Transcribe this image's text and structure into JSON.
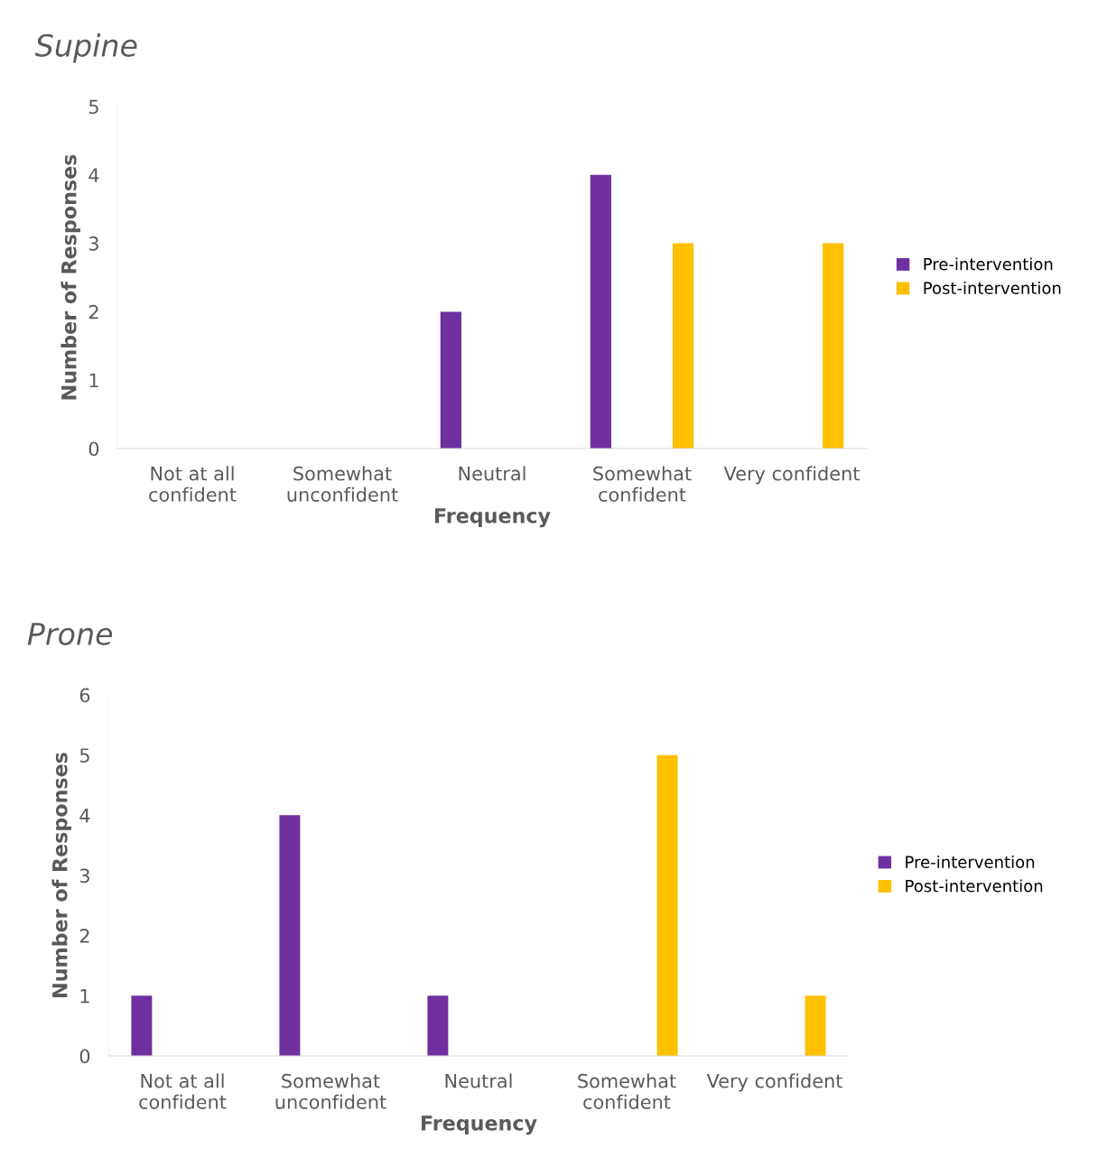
{
  "chart_data": [
    {
      "type": "bar",
      "title": "Supine",
      "xlabel": "Frequency",
      "ylabel": "Number of Responses",
      "categories": [
        "Not at all\nconfident",
        "Somewhat\nunconfident",
        "Neutral",
        "Somewhat\nconfident",
        "Very confident"
      ],
      "series": [
        {
          "name": "Pre-intervention",
          "color": "#7030a0",
          "values": [
            0,
            0,
            2,
            4,
            0
          ]
        },
        {
          "name": "Post-intervention",
          "color": "#ffc000",
          "values": [
            0,
            0,
            0,
            3,
            3
          ]
        }
      ],
      "ylim": [
        0,
        5
      ],
      "yticks": [
        0,
        1,
        2,
        3,
        4,
        5
      ],
      "grid": false,
      "legend": "right"
    },
    {
      "type": "bar",
      "title": "Prone",
      "xlabel": "Frequency",
      "ylabel": "Number of Responses",
      "categories": [
        "Not at all\nconfident",
        "Somewhat\nunconfident",
        "Neutral",
        "Somewhat\nconfident",
        "Very confident"
      ],
      "series": [
        {
          "name": "Pre-intervention",
          "color": "#7030a0",
          "values": [
            1,
            4,
            1,
            0,
            0
          ]
        },
        {
          "name": "Post-intervention",
          "color": "#ffc000",
          "values": [
            0,
            0,
            0,
            5,
            1
          ]
        }
      ],
      "ylim": [
        0,
        6
      ],
      "yticks": [
        0,
        1,
        2,
        3,
        4,
        5,
        6
      ],
      "grid": false,
      "legend": "right"
    }
  ]
}
